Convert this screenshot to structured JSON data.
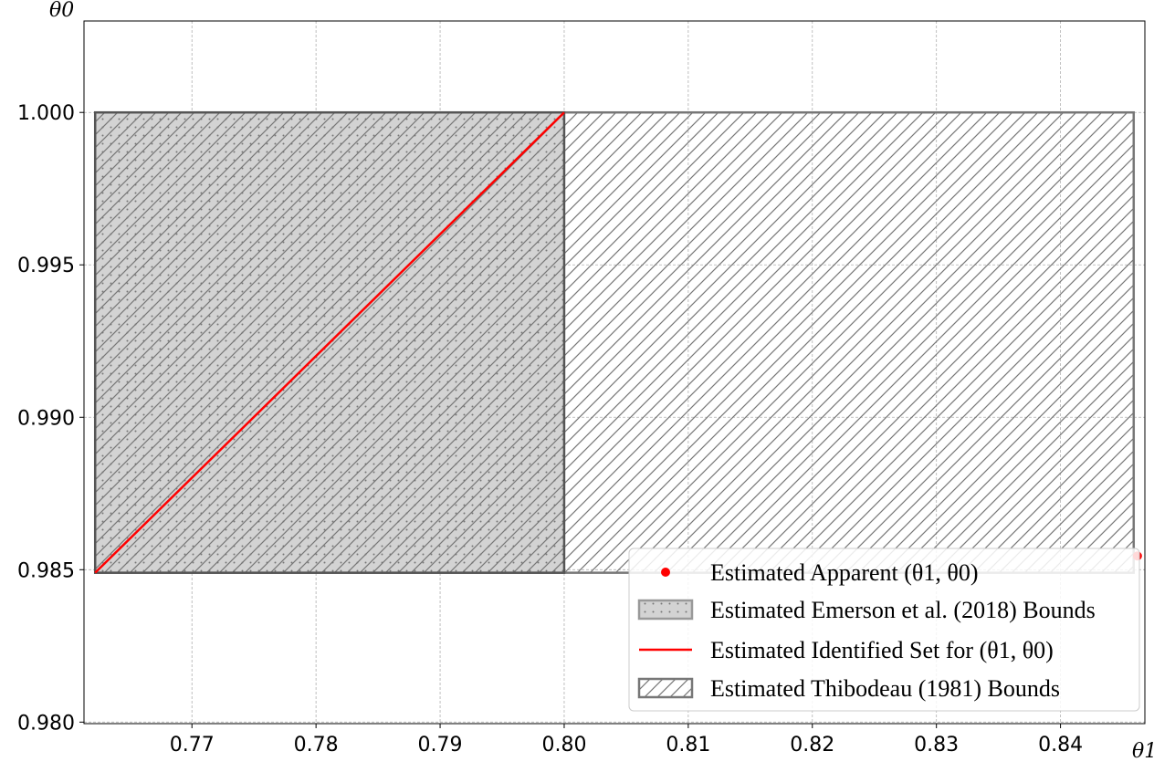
{
  "chart_data": {
    "type": "scatter",
    "xlabel": "θ1",
    "ylabel": "θ0",
    "xlim": [
      0.7613,
      0.8468
    ],
    "ylim": [
      0.97995,
      1.003
    ],
    "x_ticks": [
      "0.77",
      "0.78",
      "0.79",
      "0.80",
      "0.81",
      "0.82",
      "0.83",
      "0.84"
    ],
    "x_tick_values": [
      0.77,
      0.78,
      0.79,
      0.8,
      0.81,
      0.82,
      0.83,
      0.84
    ],
    "y_ticks": [
      "0.980",
      "0.985",
      "0.990",
      "0.995",
      "1.000"
    ],
    "y_tick_values": [
      0.98,
      0.985,
      0.99,
      0.995,
      1.0
    ],
    "grid": true,
    "legend_position": "lower-right",
    "series": [
      {
        "name": "Estimated Apparent (θ1, θ0)",
        "kind": "point",
        "x": [
          0.8462
        ],
        "y": [
          0.98545
        ],
        "color": "#ff0000"
      },
      {
        "name": "Estimated Emerson et al. (2018) Bounds",
        "kind": "rectangle",
        "x": [
          0.7622,
          0.8
        ],
        "y": [
          0.9849,
          1.0
        ],
        "fill": "#d3d3d3",
        "hatch": "dots-and-diagonal",
        "color": "#555555"
      },
      {
        "name": "Estimated Identified Set for (θ1, θ0)",
        "kind": "line",
        "x": [
          0.7622,
          0.8
        ],
        "y": [
          0.9849,
          1.0
        ],
        "color": "#ff0000"
      },
      {
        "name": "Estimated Thibodeau (1981) Bounds",
        "kind": "rectangle",
        "x": [
          0.7622,
          0.8459
        ],
        "y": [
          0.9849,
          1.0
        ],
        "fill": "none",
        "hatch": "diagonal",
        "color": "#777777"
      }
    ]
  }
}
